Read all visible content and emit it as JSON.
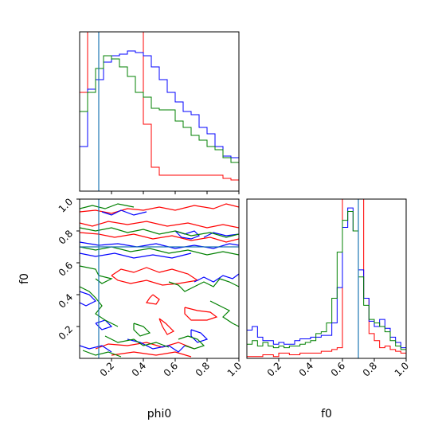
{
  "chart_data": {
    "type": "corner",
    "parameters": [
      "phi0",
      "f0"
    ],
    "xlabels": {
      "phi0": "phi0",
      "f0": "f0"
    },
    "ylabel_f0": "f0",
    "xlim": [
      0,
      1
    ],
    "ylim": [
      0,
      1
    ],
    "ticks": [
      0.2,
      0.4,
      0.6,
      0.8,
      1.0
    ],
    "tick_labels": [
      "0.2",
      "0.4",
      "0.6",
      "0.8",
      "1.0"
    ],
    "truth": {
      "phi0": 0.12,
      "f0": 0.7
    },
    "truth_color": "#1f77b4",
    "series": [
      {
        "color": "#ff0000",
        "hist_phi0": [
          0.62,
          1.05,
          1.05,
          1.05,
          1.05,
          1.05,
          1.05,
          1.05,
          0.42,
          0.15,
          0.1,
          0.1,
          0.1,
          0.1,
          0.1,
          0.1,
          0.1,
          0.1,
          0.08,
          0.07
        ],
        "hist_f0": [
          0.01,
          0.01,
          0.01,
          0.02,
          0.02,
          0.01,
          0.03,
          0.03,
          0.02,
          0.02,
          0.03,
          0.03,
          0.03,
          0.03,
          0.04,
          0.04,
          0.05,
          0.06,
          1.3,
          1.3,
          1.3,
          1.3,
          0.34,
          0.14,
          0.1,
          0.06,
          0.07,
          0.05,
          0.04,
          0.03
        ]
      },
      {
        "color": "#0000ff",
        "hist_phi0": [
          0.28,
          0.64,
          0.7,
          0.81,
          0.85,
          0.86,
          0.88,
          0.87,
          0.85,
          0.78,
          0.7,
          0.62,
          0.56,
          0.5,
          0.48,
          0.4,
          0.36,
          0.28,
          0.22,
          0.21
        ],
        "hist_f0": [
          0.16,
          0.18,
          0.12,
          0.1,
          0.1,
          0.08,
          0.09,
          0.08,
          0.08,
          0.1,
          0.11,
          0.11,
          0.12,
          0.12,
          0.13,
          0.13,
          0.2,
          0.4,
          0.74,
          0.85,
          0.72,
          0.5,
          0.34,
          0.21,
          0.18,
          0.22,
          0.17,
          0.12,
          0.09,
          0.06
        ]
      },
      {
        "color": "#008000",
        "hist_phi0": [
          0.5,
          0.62,
          0.77,
          0.85,
          0.83,
          0.78,
          0.72,
          0.62,
          0.59,
          0.52,
          0.51,
          0.51,
          0.44,
          0.4,
          0.35,
          0.32,
          0.28,
          0.26,
          0.21,
          0.18
        ],
        "hist_f0": [
          0.08,
          0.1,
          0.07,
          0.09,
          0.07,
          0.06,
          0.07,
          0.06,
          0.07,
          0.07,
          0.08,
          0.09,
          0.1,
          0.14,
          0.15,
          0.2,
          0.34,
          0.6,
          0.78,
          0.83,
          0.72,
          0.46,
          0.3,
          0.22,
          0.2,
          0.18,
          0.15,
          0.1,
          0.07,
          0.05
        ]
      }
    ],
    "contours": [
      {
        "color": "#ff0000",
        "paths": [
          [
            [
              0.0,
              0.85
            ],
            [
              0.08,
              0.83
            ],
            [
              0.18,
              0.86
            ],
            [
              0.3,
              0.84
            ],
            [
              0.42,
              0.86
            ],
            [
              0.55,
              0.83
            ],
            [
              0.68,
              0.85
            ],
            [
              0.8,
              0.82
            ],
            [
              0.9,
              0.84
            ],
            [
              1.0,
              0.82
            ]
          ],
          [
            [
              0.0,
              0.79
            ],
            [
              0.12,
              0.78
            ],
            [
              0.22,
              0.76
            ],
            [
              0.34,
              0.78
            ],
            [
              0.46,
              0.75
            ],
            [
              0.58,
              0.77
            ],
            [
              0.7,
              0.74
            ],
            [
              0.82,
              0.76
            ],
            [
              0.92,
              0.73
            ],
            [
              1.0,
              0.75
            ]
          ],
          [
            [
              0.0,
              0.92
            ],
            [
              0.1,
              0.93
            ],
            [
              0.2,
              0.91
            ],
            [
              0.3,
              0.94
            ],
            [
              0.4,
              0.93
            ],
            [
              0.5,
              0.95
            ],
            [
              0.6,
              0.93
            ],
            [
              0.72,
              0.96
            ],
            [
              0.84,
              0.94
            ],
            [
              0.92,
              0.97
            ],
            [
              1.0,
              0.95
            ]
          ],
          [
            [
              0.2,
              0.52
            ],
            [
              0.26,
              0.56
            ],
            [
              0.34,
              0.54
            ],
            [
              0.42,
              0.57
            ],
            [
              0.5,
              0.54
            ],
            [
              0.58,
              0.56
            ],
            [
              0.68,
              0.53
            ],
            [
              0.74,
              0.49
            ],
            [
              0.62,
              0.47
            ],
            [
              0.52,
              0.46
            ],
            [
              0.42,
              0.49
            ],
            [
              0.32,
              0.47
            ],
            [
              0.24,
              0.49
            ],
            [
              0.2,
              0.52
            ]
          ],
          [
            [
              0.46,
              0.4
            ],
            [
              0.5,
              0.37
            ],
            [
              0.48,
              0.34
            ],
            [
              0.42,
              0.35
            ],
            [
              0.44,
              0.38
            ],
            [
              0.46,
              0.4
            ]
          ],
          [
            [
              0.5,
              0.25
            ],
            [
              0.54,
              0.22
            ],
            [
              0.59,
              0.17
            ],
            [
              0.55,
              0.15
            ],
            [
              0.52,
              0.2
            ],
            [
              0.5,
              0.25
            ]
          ],
          [
            [
              0.66,
              0.32
            ],
            [
              0.74,
              0.3
            ],
            [
              0.82,
              0.29
            ],
            [
              0.86,
              0.26
            ],
            [
              0.8,
              0.24
            ],
            [
              0.7,
              0.24
            ],
            [
              0.66,
              0.28
            ],
            [
              0.66,
              0.32
            ]
          ],
          [
            [
              0.1,
              0.06
            ],
            [
              0.18,
              0.09
            ],
            [
              0.3,
              0.08
            ],
            [
              0.42,
              0.1
            ],
            [
              0.52,
              0.07
            ],
            [
              0.62,
              0.1
            ],
            [
              0.72,
              0.06
            ]
          ],
          [
            [
              0.2,
              0.02
            ],
            [
              0.34,
              0.04
            ],
            [
              0.48,
              0.02
            ],
            [
              0.6,
              0.04
            ],
            [
              0.7,
              0.01
            ]
          ]
        ]
      },
      {
        "color": "#0000ff",
        "paths": [
          [
            [
              0.0,
              0.73
            ],
            [
              0.12,
              0.71
            ],
            [
              0.24,
              0.72
            ],
            [
              0.36,
              0.7
            ],
            [
              0.48,
              0.72
            ],
            [
              0.6,
              0.69
            ],
            [
              0.72,
              0.71
            ],
            [
              0.84,
              0.69
            ],
            [
              0.94,
              0.72
            ],
            [
              1.0,
              0.71
            ]
          ],
          [
            [
              0.0,
              0.66
            ],
            [
              0.1,
              0.64
            ],
            [
              0.22,
              0.66
            ],
            [
              0.34,
              0.63
            ],
            [
              0.46,
              0.65
            ],
            [
              0.58,
              0.63
            ],
            [
              0.7,
              0.66
            ]
          ],
          [
            [
              0.14,
              0.92
            ],
            [
              0.2,
              0.9
            ],
            [
              0.26,
              0.93
            ],
            [
              0.34,
              0.9
            ],
            [
              0.42,
              0.92
            ]
          ],
          [
            [
              0.6,
              0.8
            ],
            [
              0.66,
              0.78
            ],
            [
              0.72,
              0.8
            ],
            [
              0.75,
              0.77
            ],
            [
              0.7,
              0.75
            ],
            [
              0.64,
              0.76
            ],
            [
              0.6,
              0.8
            ]
          ],
          [
            [
              0.78,
              0.76
            ],
            [
              0.84,
              0.79
            ],
            [
              0.92,
              0.77
            ],
            [
              1.0,
              0.78
            ]
          ],
          [
            [
              0.0,
              0.42
            ],
            [
              0.06,
              0.4
            ],
            [
              0.1,
              0.36
            ],
            [
              0.04,
              0.33
            ],
            [
              0.0,
              0.35
            ]
          ],
          [
            [
              0.72,
              0.48
            ],
            [
              0.78,
              0.51
            ],
            [
              0.84,
              0.48
            ],
            [
              0.9,
              0.52
            ],
            [
              0.96,
              0.5
            ],
            [
              1.0,
              0.53
            ]
          ],
          [
            [
              0.1,
              0.22
            ],
            [
              0.16,
              0.24
            ],
            [
              0.2,
              0.2
            ],
            [
              0.14,
              0.18
            ],
            [
              0.1,
              0.22
            ]
          ],
          [
            [
              0.3,
              0.12
            ],
            [
              0.38,
              0.1
            ],
            [
              0.46,
              0.06
            ],
            [
              0.56,
              0.08
            ],
            [
              0.62,
              0.04
            ],
            [
              0.66,
              0.08
            ]
          ],
          [
            [
              0.0,
              0.08
            ],
            [
              0.06,
              0.06
            ],
            [
              0.14,
              0.08
            ],
            [
              0.2,
              0.04
            ]
          ],
          [
            [
              0.7,
              0.18
            ],
            [
              0.76,
              0.16
            ],
            [
              0.8,
              0.12
            ],
            [
              0.74,
              0.1
            ],
            [
              0.7,
              0.14
            ],
            [
              0.7,
              0.18
            ]
          ]
        ]
      },
      {
        "color": "#008000",
        "paths": [
          [
            [
              0.0,
              0.82
            ],
            [
              0.1,
              0.8
            ],
            [
              0.2,
              0.82
            ],
            [
              0.3,
              0.79
            ],
            [
              0.4,
              0.81
            ],
            [
              0.5,
              0.78
            ],
            [
              0.6,
              0.8
            ],
            [
              0.7,
              0.77
            ],
            [
              0.82,
              0.79
            ],
            [
              0.92,
              0.76
            ],
            [
              1.0,
              0.78
            ]
          ],
          [
            [
              0.0,
              0.7
            ],
            [
              0.1,
              0.68
            ],
            [
              0.2,
              0.7
            ],
            [
              0.32,
              0.67
            ],
            [
              0.44,
              0.69
            ],
            [
              0.56,
              0.66
            ],
            [
              0.68,
              0.68
            ],
            [
              0.8,
              0.65
            ],
            [
              0.9,
              0.67
            ],
            [
              1.0,
              0.65
            ]
          ],
          [
            [
              0.0,
              0.94
            ],
            [
              0.08,
              0.96
            ],
            [
              0.16,
              0.94
            ],
            [
              0.24,
              0.97
            ],
            [
              0.34,
              0.95
            ]
          ],
          [
            [
              0.0,
              0.58
            ],
            [
              0.1,
              0.56
            ],
            [
              0.12,
              0.52
            ],
            [
              0.2,
              0.5
            ],
            [
              0.14,
              0.47
            ],
            [
              0.1,
              0.5
            ]
          ],
          [
            [
              0.56,
              0.48
            ],
            [
              0.62,
              0.46
            ],
            [
              0.66,
              0.42
            ],
            [
              0.72,
              0.45
            ],
            [
              0.78,
              0.48
            ],
            [
              0.84,
              0.45
            ],
            [
              0.88,
              0.5
            ],
            [
              0.94,
              0.48
            ],
            [
              1.0,
              0.45
            ]
          ],
          [
            [
              0.0,
              0.45
            ],
            [
              0.06,
              0.42
            ],
            [
              0.1,
              0.38
            ],
            [
              0.14,
              0.33
            ],
            [
              0.1,
              0.28
            ],
            [
              0.16,
              0.24
            ],
            [
              0.24,
              0.2
            ]
          ],
          [
            [
              0.82,
              0.36
            ],
            [
              0.88,
              0.33
            ],
            [
              0.94,
              0.3
            ],
            [
              0.9,
              0.26
            ],
            [
              0.96,
              0.22
            ],
            [
              1.0,
              0.2
            ]
          ],
          [
            [
              0.16,
              0.14
            ],
            [
              0.24,
              0.1
            ],
            [
              0.34,
              0.12
            ],
            [
              0.4,
              0.08
            ],
            [
              0.48,
              0.1
            ],
            [
              0.56,
              0.07
            ]
          ],
          [
            [
              0.02,
              0.05
            ],
            [
              0.1,
              0.02
            ],
            [
              0.18,
              0.04
            ],
            [
              0.26,
              0.01
            ]
          ],
          [
            [
              0.34,
              0.22
            ],
            [
              0.4,
              0.2
            ],
            [
              0.44,
              0.16
            ],
            [
              0.38,
              0.14
            ],
            [
              0.34,
              0.18
            ],
            [
              0.34,
              0.22
            ]
          ],
          [
            [
              0.62,
              0.12
            ],
            [
              0.68,
              0.14
            ],
            [
              0.74,
              0.12
            ],
            [
              0.78,
              0.08
            ],
            [
              0.72,
              0.06
            ],
            [
              0.66,
              0.08
            ]
          ]
        ]
      }
    ]
  }
}
